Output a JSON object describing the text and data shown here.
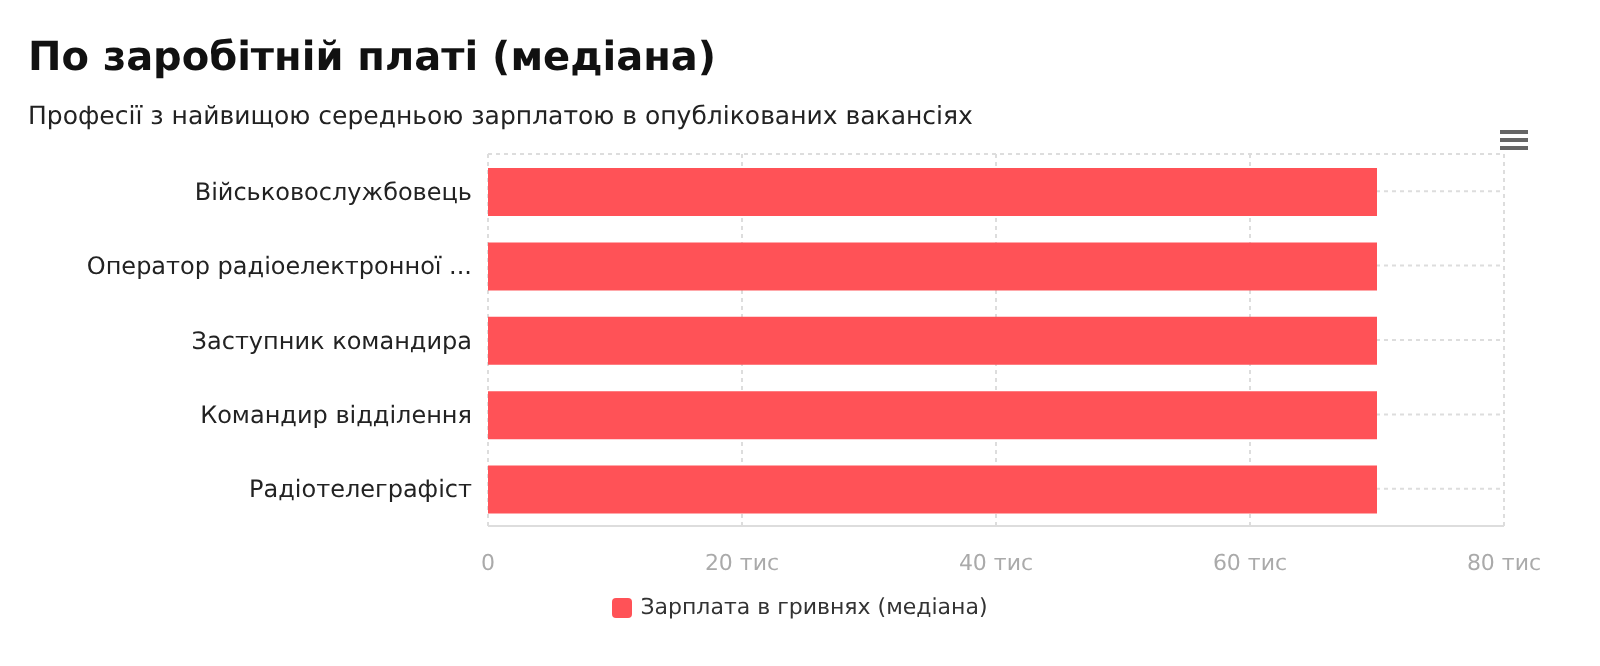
{
  "chart_data": {
    "type": "bar",
    "orientation": "horizontal",
    "title": "По заробітній платі (медіана)",
    "subtitle": "Професії з найвищою середньою зарплатою в опублікованих вакансіях",
    "categories": [
      "Військовослужбовець",
      "Оператор радіоелектронної ...",
      "Заступник командира",
      "Командир відділення",
      "Радіотелеграфіст"
    ],
    "series": [
      {
        "name": "Зарплата в гривнях (медіана)",
        "color": "#ff5257",
        "values": [
          70,
          70,
          70,
          70,
          70
        ]
      }
    ],
    "xlim": [
      0,
      80
    ],
    "xticks": [
      0,
      {
        "value": 20,
        "label": "20 тис"
      },
      {
        "value": 40,
        "label": "40 тис"
      },
      {
        "value": 60,
        "label": "60 тис"
      },
      {
        "value": 80,
        "label": "80 тис"
      }
    ],
    "grid": true,
    "legend": "bottom"
  }
}
